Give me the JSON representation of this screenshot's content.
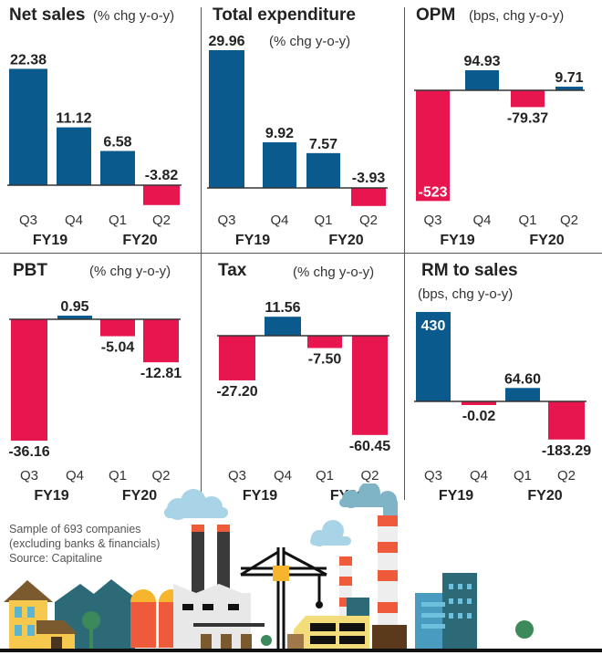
{
  "colors": {
    "positive": "#0b5a8e",
    "negative": "#e8164f",
    "axis": "#333333"
  },
  "chart_data": [
    {
      "type": "bar",
      "title": "Net sales",
      "unit": "(% chg y-o-y)",
      "categories": [
        "Q3",
        "Q4",
        "Q1",
        "Q2"
      ],
      "groups": [
        "FY19",
        "FY20"
      ],
      "values": [
        22.38,
        11.12,
        6.58,
        -3.82
      ],
      "labels": [
        "22.38",
        "11.12",
        "6.58",
        "-3.82"
      ]
    },
    {
      "type": "bar",
      "title": "Total expenditure",
      "unit": "(% chg y-o-y)",
      "categories": [
        "Q3",
        "Q4",
        "Q1",
        "Q2"
      ],
      "groups": [
        "FY19",
        "FY20"
      ],
      "values": [
        29.96,
        9.92,
        7.57,
        -3.93
      ],
      "labels": [
        "29.96",
        "9.92",
        "7.57",
        "-3.93"
      ]
    },
    {
      "type": "bar",
      "title": "OPM",
      "unit": "(bps, chg y-o-y)",
      "categories": [
        "Q3",
        "Q4",
        "Q1",
        "Q2"
      ],
      "groups": [
        "FY19",
        "FY20"
      ],
      "values": [
        -523,
        94.93,
        -79.37,
        9.71
      ],
      "labels": [
        "-523",
        "94.93",
        "-79.37",
        "9.71"
      ]
    },
    {
      "type": "bar",
      "title": "PBT",
      "unit": "(% chg y-o-y)",
      "categories": [
        "Q3",
        "Q4",
        "Q1",
        "Q2"
      ],
      "groups": [
        "FY19",
        "FY20"
      ],
      "values": [
        -36.16,
        0.95,
        -5.04,
        -12.81
      ],
      "labels": [
        "-36.16",
        "0.95",
        "-5.04",
        "-12.81"
      ]
    },
    {
      "type": "bar",
      "title": "Tax",
      "unit": "(% chg y-o-y)",
      "categories": [
        "Q3",
        "Q4",
        "Q1",
        "Q2"
      ],
      "groups": [
        "FY19",
        "FY20"
      ],
      "values": [
        -27.2,
        11.56,
        -7.5,
        -60.45
      ],
      "labels": [
        "-27.20",
        "11.56",
        "-7.50",
        "-60.45"
      ]
    },
    {
      "type": "bar",
      "title": "RM to sales",
      "unit": "(bps, chg y-o-y)",
      "categories": [
        "Q3",
        "Q4",
        "Q1",
        "Q2"
      ],
      "groups": [
        "FY19",
        "FY20"
      ],
      "values": [
        430,
        -0.02,
        64.6,
        -183.29
      ],
      "labels": [
        "430",
        "-0.02",
        "64.60",
        "-183.29"
      ]
    }
  ],
  "footnote": {
    "line1": "Sample of 693 companies",
    "line2": "(excluding banks & financials)",
    "line3": "Source: Capitaline"
  }
}
